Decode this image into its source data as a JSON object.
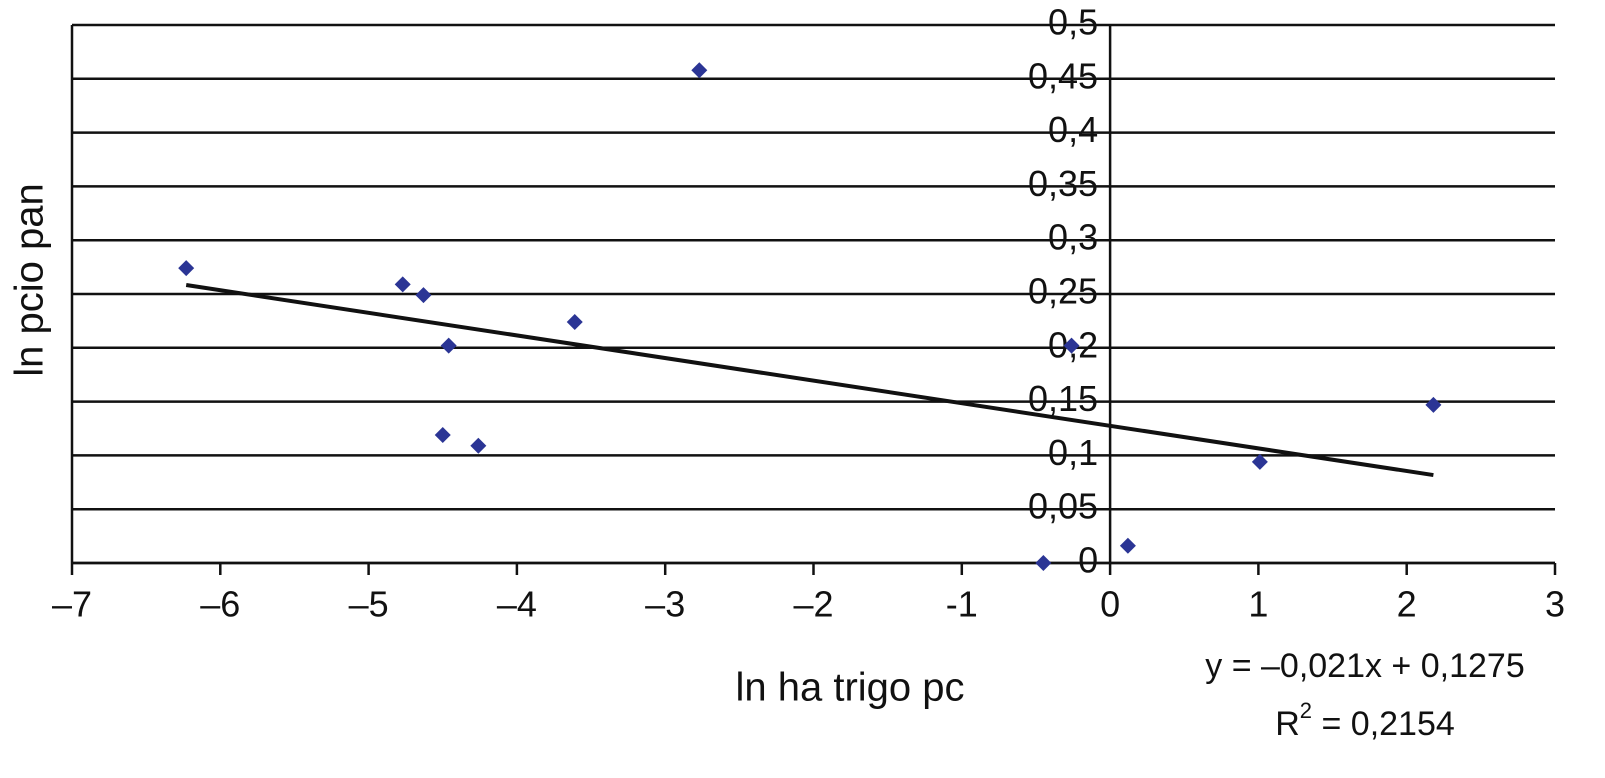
{
  "chart_data": {
    "type": "scatter",
    "x_label": "ln ha trigo pc",
    "y_label": "ln pcio pan",
    "series": [
      {
        "color": "#2b3595",
        "x": [
          -6.23,
          -4.77,
          -4.63,
          -4.46,
          -3.61,
          -2.77,
          -4.5,
          -4.26,
          -0.26,
          -0.45,
          0.12,
          1.01,
          2.18
        ],
        "values": [
          0.274,
          0.259,
          0.249,
          0.202,
          0.224,
          0.458,
          0.119,
          0.109,
          0.202,
          0,
          0.016,
          0.094,
          0.147
        ]
      }
    ],
    "trendline": {
      "slope": -0.021,
      "intercept": 0.1275,
      "color": "#111111",
      "equation": "y = –0,021x + 0,1275",
      "r2": {
        "base": "R",
        "sup": "2",
        "rest": " = 0,2154"
      }
    },
    "xlim": [
      -7,
      3
    ],
    "ylim": [
      0,
      0.5
    ],
    "xticks": [
      {
        "value": -7,
        "label": "–7"
      },
      {
        "value": -6,
        "label": "–6"
      },
      {
        "value": -5,
        "label": "–5"
      },
      {
        "value": -4,
        "label": "–4"
      },
      {
        "value": -3,
        "label": "–3"
      },
      {
        "value": -2,
        "label": "–2"
      },
      -1,
      0,
      1,
      2,
      3
    ],
    "yticks": [
      0,
      {
        "value": 0.05,
        "label": "0,05"
      },
      {
        "value": 0.1,
        "label": "0,1"
      },
      {
        "value": 0.15,
        "label": "0,15"
      },
      {
        "value": 0.2,
        "label": "0,2"
      },
      {
        "value": 0.25,
        "label": "0,25"
      },
      {
        "value": 0.3,
        "label": "0,3"
      },
      {
        "value": 0.35,
        "label": "0,35"
      },
      {
        "value": 0.4,
        "label": "0,4"
      },
      {
        "value": 0.45,
        "label": "0,45"
      },
      {
        "value": 0.5,
        "label": "0,5"
      }
    ],
    "grid": true
  }
}
